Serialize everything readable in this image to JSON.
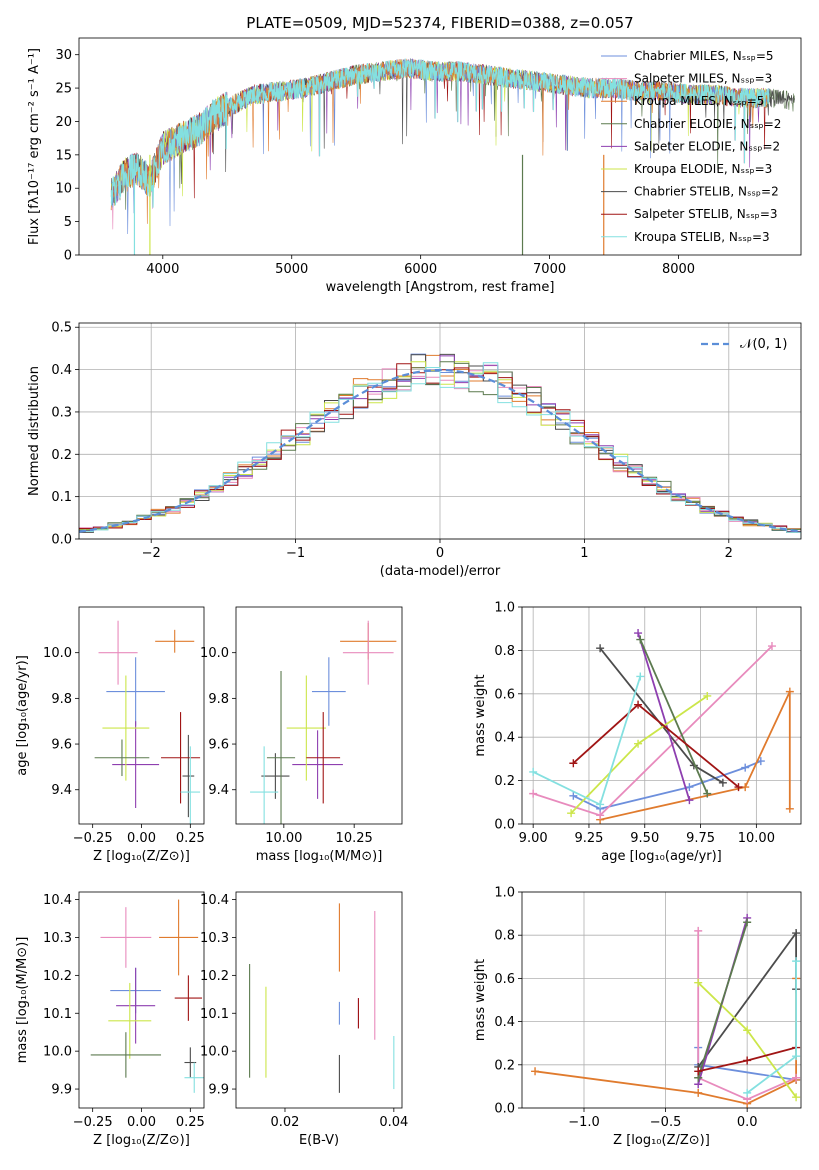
{
  "colors": [
    "#6d8fdc",
    "#e07b2e",
    "#e88bbd",
    "#4c4c4c",
    "#8e3fb0",
    "#cce64a",
    "#5c7a4f",
    "#a01515",
    "#84e0e0"
  ],
  "chart_data": [
    {
      "id": "spectrum",
      "type": "line",
      "title": "PLATE=0509, MJD=52374, FIBERID=0388, z=0.057",
      "xlabel": "wavelength [Angstrom, rest frame]",
      "ylabel": "Flux [fλ10⁻¹⁷ erg cm⁻² s⁻¹ A⁻¹]",
      "xlim": [
        3350,
        8950
      ],
      "ylim": [
        0,
        32.5
      ],
      "xticks": [
        "4000",
        "5000",
        "6000",
        "7000",
        "8000"
      ],
      "yticks": [
        "0",
        "5",
        "10",
        "15",
        "20",
        "25",
        "30"
      ],
      "legend_position": "right",
      "series": [
        {
          "name": "Chabrier MILES, Nₛₛₚ=5",
          "color": "#6d8fdc"
        },
        {
          "name": "Salpeter MILES, Nₛₛₚ=3",
          "color": "#e88bbd"
        },
        {
          "name": "Kroupa MILES, Nₛₛₚ=5",
          "color": "#e07b2e"
        },
        {
          "name": "Chabrier ELODIE, Nₛₛₚ=2",
          "color": "#5c7a4f"
        },
        {
          "name": "Salpeter ELODIE, Nₛₛₚ=2",
          "color": "#8e3fb0"
        },
        {
          "name": "Kroupa ELODIE, Nₛₛₚ=3",
          "color": "#cce64a"
        },
        {
          "name": "Chabrier STELIB, Nₛₛₚ=2",
          "color": "#4c4c4c"
        },
        {
          "name": "Salpeter STELIB, Nₛₛₚ=3",
          "color": "#a01515"
        },
        {
          "name": "Kroupa STELIB, Nₛₛₚ=3",
          "color": "#84e0e0"
        }
      ],
      "continuum": {
        "x": [
          3600,
          3700,
          3800,
          3900,
          4000,
          4100,
          4200,
          4300,
          4400,
          4500,
          4700,
          4900,
          5100,
          5300,
          5500,
          5700,
          5900,
          6100,
          6300,
          6500,
          6700,
          6900,
          7100,
          7300,
          7500,
          7700,
          7900,
          8100,
          8300,
          8500,
          8700,
          8900
        ],
        "y": [
          9,
          12,
          13,
          11,
          16,
          17,
          18,
          19,
          21,
          22,
          24,
          24.5,
          25,
          26,
          27,
          27.5,
          28,
          27.5,
          27.5,
          27,
          26.5,
          26,
          25.5,
          25,
          25,
          24.5,
          24.5,
          24,
          24,
          23.5,
          23.5,
          23
        ]
      },
      "spikes": [
        {
          "x": 3780,
          "y": 0
        },
        {
          "x": 3900,
          "y": 0
        },
        {
          "x": 6790,
          "y": 0
        },
        {
          "x": 7420,
          "y": 0
        }
      ]
    },
    {
      "id": "residuals",
      "type": "histogram",
      "xlabel": "(data-model)/error",
      "ylabel": "Normed distribution",
      "xlim": [
        -2.5,
        2.5
      ],
      "ylim": [
        0,
        0.51
      ],
      "xticks": [
        "−2",
        "−1",
        "0",
        "1",
        "2"
      ],
      "yticks": [
        "0.0",
        "0.1",
        "0.2",
        "0.3",
        "0.4",
        "0.5"
      ],
      "bin_width": 0.1,
      "legend": "𝒩(0, 1)",
      "legend_position": "top-right",
      "reference_color": "#5b8ed8",
      "grid": true
    },
    {
      "id": "age-vs-Z",
      "type": "errorbar",
      "xlabel": "Z [log₁₀(Z/Z⊙)]",
      "ylabel": "age  [log₁₀(age/yr)]",
      "xlim": [
        -0.32,
        0.32
      ],
      "ylim": [
        9.25,
        10.2
      ],
      "xticks": [
        "−0.25",
        "0.00",
        "0.25"
      ],
      "yticks": [
        "9.4",
        "9.6",
        "9.8",
        "10.0"
      ],
      "points": [
        {
          "x": -0.03,
          "xerr": 0.15,
          "y": 9.83,
          "yerr": 0.15,
          "color": "#6d8fdc"
        },
        {
          "x": 0.17,
          "xerr": 0.1,
          "y": 10.05,
          "yerr": 0.05,
          "color": "#e07b2e"
        },
        {
          "x": -0.12,
          "xerr": 0.1,
          "y": 10.0,
          "yerr": 0.14,
          "color": "#e88bbd"
        },
        {
          "x": 0.24,
          "xerr": 0.03,
          "y": 9.46,
          "yerr": 0.18,
          "color": "#4c4c4c"
        },
        {
          "x": -0.03,
          "xerr": 0.12,
          "y": 9.51,
          "yerr": 0.19,
          "color": "#8e3fb0"
        },
        {
          "x": -0.08,
          "xerr": 0.12,
          "y": 9.67,
          "yerr": 0.23,
          "color": "#cce64a"
        },
        {
          "x": -0.1,
          "xerr": 0.14,
          "y": 9.54,
          "yerr": 0.08,
          "color": "#5c7a4f"
        },
        {
          "x": 0.2,
          "xerr": 0.1,
          "y": 9.54,
          "yerr": 0.2,
          "color": "#a01515"
        },
        {
          "x": 0.25,
          "xerr": 0.05,
          "y": 9.39,
          "yerr": 0.2,
          "color": "#84e0e0"
        }
      ]
    },
    {
      "id": "age-vs-mass",
      "type": "errorbar",
      "xlabel": "mass [log₁₀(M/M⊙)]",
      "ylabel": "",
      "xlim": [
        9.83,
        10.42
      ],
      "ylim": [
        9.25,
        10.2
      ],
      "xticks": [
        "10.00",
        "10.25"
      ],
      "yticks": [
        "9.4",
        "9.6",
        "9.8",
        "10.0"
      ],
      "points": [
        {
          "x": 10.16,
          "xerr": 0.06,
          "y": 9.83,
          "yerr": 0.15,
          "color": "#6d8fdc"
        },
        {
          "x": 10.3,
          "xerr": 0.1,
          "y": 10.05,
          "yerr": 0.08,
          "color": "#e07b2e"
        },
        {
          "x": 10.3,
          "xerr": 0.09,
          "y": 10.0,
          "yerr": 0.14,
          "color": "#e88bbd"
        },
        {
          "x": 9.97,
          "xerr": 0.05,
          "y": 9.46,
          "yerr": 0.1,
          "color": "#4c4c4c"
        },
        {
          "x": 10.12,
          "xerr": 0.09,
          "y": 9.51,
          "yerr": 0.15,
          "color": "#8e3fb0"
        },
        {
          "x": 10.08,
          "xerr": 0.07,
          "y": 9.67,
          "yerr": 0.23,
          "color": "#cce64a"
        },
        {
          "x": 9.99,
          "xerr": 0.05,
          "y": 9.54,
          "yerr": 0.38,
          "color": "#5c7a4f"
        },
        {
          "x": 10.14,
          "xerr": 0.06,
          "y": 9.54,
          "yerr": 0.2,
          "color": "#a01515"
        },
        {
          "x": 9.93,
          "xerr": 0.05,
          "y": 9.39,
          "yerr": 0.2,
          "color": "#84e0e0"
        }
      ]
    },
    {
      "id": "mass-weight-vs-age",
      "type": "line",
      "xlabel": "age  [log₁₀(age/yr)]",
      "ylabel": "mass weight",
      "xlim": [
        8.95,
        10.2
      ],
      "ylim": [
        0,
        1
      ],
      "xticks": [
        "9.00",
        "9.25",
        "9.50",
        "9.75",
        "10.00"
      ],
      "yticks": [
        "0.0",
        "0.2",
        "0.4",
        "0.6",
        "0.8",
        "1.0"
      ],
      "grid": true,
      "series": [
        {
          "color": "#6d8fdc",
          "x": [
            9.18,
            9.3,
            9.7,
            9.95,
            10.02
          ],
          "y": [
            0.13,
            0.07,
            0.17,
            0.26,
            0.29
          ]
        },
        {
          "color": "#e07b2e",
          "x": [
            9.3,
            9.95,
            10.15,
            10.15
          ],
          "y": [
            0.02,
            0.17,
            0.61,
            0.07
          ]
        },
        {
          "color": "#e88bbd",
          "x": [
            9.0,
            9.3,
            10.07
          ],
          "y": [
            0.14,
            0.04,
            0.82
          ]
        },
        {
          "color": "#4c4c4c",
          "x": [
            9.3,
            9.72,
            9.85
          ],
          "y": [
            0.81,
            0.27,
            0.19
          ]
        },
        {
          "color": "#8e3fb0",
          "x": [
            9.47,
            9.7
          ],
          "y": [
            0.88,
            0.11
          ]
        },
        {
          "color": "#cce64a",
          "x": [
            9.17,
            9.47,
            9.78
          ],
          "y": [
            0.05,
            0.37,
            0.59
          ]
        },
        {
          "color": "#5c7a4f",
          "x": [
            9.48,
            9.78
          ],
          "y": [
            0.85,
            0.14
          ]
        },
        {
          "color": "#a01515",
          "x": [
            9.18,
            9.47,
            9.92
          ],
          "y": [
            0.28,
            0.55,
            0.17
          ]
        },
        {
          "color": "#84e0e0",
          "x": [
            9.0,
            9.3,
            9.48
          ],
          "y": [
            0.24,
            0.09,
            0.68
          ]
        }
      ]
    },
    {
      "id": "mass-vs-Z",
      "type": "errorbar",
      "xlabel": "Z [log₁₀(Z/Z⊙)]",
      "ylabel": "mass [log₁₀(M/M⊙)]",
      "xlim": [
        -0.32,
        0.32
      ],
      "ylim": [
        9.85,
        10.42
      ],
      "xticks": [
        "−0.25",
        "0.00",
        "0.25"
      ],
      "yticks": [
        "9.9",
        "10.0",
        "10.1",
        "10.2",
        "10.3",
        "10.4"
      ],
      "points": [
        {
          "x": -0.03,
          "xerr": 0.13,
          "y": 10.16,
          "yerr": 0.06,
          "color": "#6d8fdc"
        },
        {
          "x": 0.19,
          "xerr": 0.1,
          "y": 10.3,
          "yerr": 0.1,
          "color": "#e07b2e"
        },
        {
          "x": -0.08,
          "xerr": 0.13,
          "y": 10.3,
          "yerr": 0.08,
          "color": "#e88bbd"
        },
        {
          "x": 0.25,
          "xerr": 0.03,
          "y": 9.97,
          "yerr": 0.04,
          "color": "#4c4c4c"
        },
        {
          "x": -0.03,
          "xerr": 0.1,
          "y": 10.12,
          "yerr": 0.1,
          "color": "#8e3fb0"
        },
        {
          "x": -0.06,
          "xerr": 0.11,
          "y": 10.08,
          "yerr": 0.1,
          "color": "#cce64a"
        },
        {
          "x": -0.08,
          "xerr": 0.18,
          "y": 9.99,
          "yerr": 0.06,
          "color": "#5c7a4f"
        },
        {
          "x": 0.24,
          "xerr": 0.07,
          "y": 10.14,
          "yerr": 0.06,
          "color": "#a01515"
        },
        {
          "x": 0.27,
          "xerr": 0.05,
          "y": 9.93,
          "yerr": 0.04,
          "color": "#84e0e0"
        }
      ]
    },
    {
      "id": "mass-vs-EBV",
      "type": "errorbar",
      "xlabel": "E(B-V)",
      "ylabel": "",
      "xlim": [
        0.011,
        0.0415
      ],
      "ylim": [
        9.85,
        10.42
      ],
      "xticks": [
        "0.02",
        "0.04"
      ],
      "yticks": [
        "9.9",
        "10.0",
        "10.1",
        "10.2",
        "10.3",
        "10.4"
      ],
      "points": [
        {
          "x": 0.03,
          "y": 10.1,
          "yerr": 0.03,
          "color": "#6d8fdc"
        },
        {
          "x": 0.03,
          "y": 10.3,
          "yerr": 0.09,
          "color": "#e07b2e"
        },
        {
          "x": 0.0365,
          "y": 10.2,
          "yerr": 0.17,
          "color": "#e88bbd"
        },
        {
          "x": 0.03,
          "y": 9.94,
          "yerr": 0.05,
          "color": "#4c4c4c"
        },
        {
          "x": 0.0335,
          "y": 10.1,
          "yerr": 0.04,
          "color": "#8e3fb0"
        },
        {
          "x": 0.0165,
          "y": 10.05,
          "yerr": 0.12,
          "color": "#cce64a"
        },
        {
          "x": 0.0135,
          "y": 10.08,
          "yerr": 0.15,
          "color": "#5c7a4f"
        },
        {
          "x": 0.0335,
          "y": 10.1,
          "yerr": 0.04,
          "color": "#a01515"
        },
        {
          "x": 0.04,
          "y": 9.97,
          "yerr": 0.07,
          "color": "#84e0e0"
        }
      ]
    },
    {
      "id": "mass-weight-vs-Z",
      "type": "line",
      "xlabel": "Z [log₁₀(Z/Z⊙)]",
      "ylabel": "mass weight",
      "xlim": [
        -1.38,
        0.33
      ],
      "ylim": [
        0,
        1
      ],
      "xticks": [
        "−1.0",
        "−0.5",
        "0.0"
      ],
      "yticks": [
        "0.0",
        "0.2",
        "0.4",
        "0.6",
        "0.8",
        "1.0"
      ],
      "grid": true,
      "series": [
        {
          "color": "#6d8fdc",
          "x": [
            -0.3,
            -0.3,
            0.3
          ],
          "y": [
            0.28,
            0.2,
            0.13
          ]
        },
        {
          "color": "#e07b2e",
          "x": [
            -1.3,
            -0.3,
            0.0,
            0.3,
            0.3
          ],
          "y": [
            0.17,
            0.07,
            0.02,
            0.13,
            0.6
          ]
        },
        {
          "color": "#e88bbd",
          "x": [
            -0.3,
            -0.3,
            0.0,
            0.3
          ],
          "y": [
            0.82,
            0.14,
            0.04,
            0.14
          ]
        },
        {
          "color": "#4c4c4c",
          "x": [
            -0.3,
            0.3,
            0.3
          ],
          "y": [
            0.19,
            0.81,
            0.55
          ]
        },
        {
          "color": "#8e3fb0",
          "x": [
            -0.3,
            0.0
          ],
          "y": [
            0.11,
            0.88
          ]
        },
        {
          "color": "#cce64a",
          "x": [
            -0.3,
            0.0,
            0.3
          ],
          "y": [
            0.58,
            0.36,
            0.05
          ]
        },
        {
          "color": "#5c7a4f",
          "x": [
            -0.3,
            0.0
          ],
          "y": [
            0.14,
            0.86
          ]
        },
        {
          "color": "#a01515",
          "x": [
            -0.3,
            0.0,
            0.3
          ],
          "y": [
            0.17,
            0.22,
            0.28
          ]
        },
        {
          "color": "#84e0e0",
          "x": [
            0.0,
            0.3,
            0.3
          ],
          "y": [
            0.07,
            0.24,
            0.68
          ]
        }
      ]
    }
  ]
}
